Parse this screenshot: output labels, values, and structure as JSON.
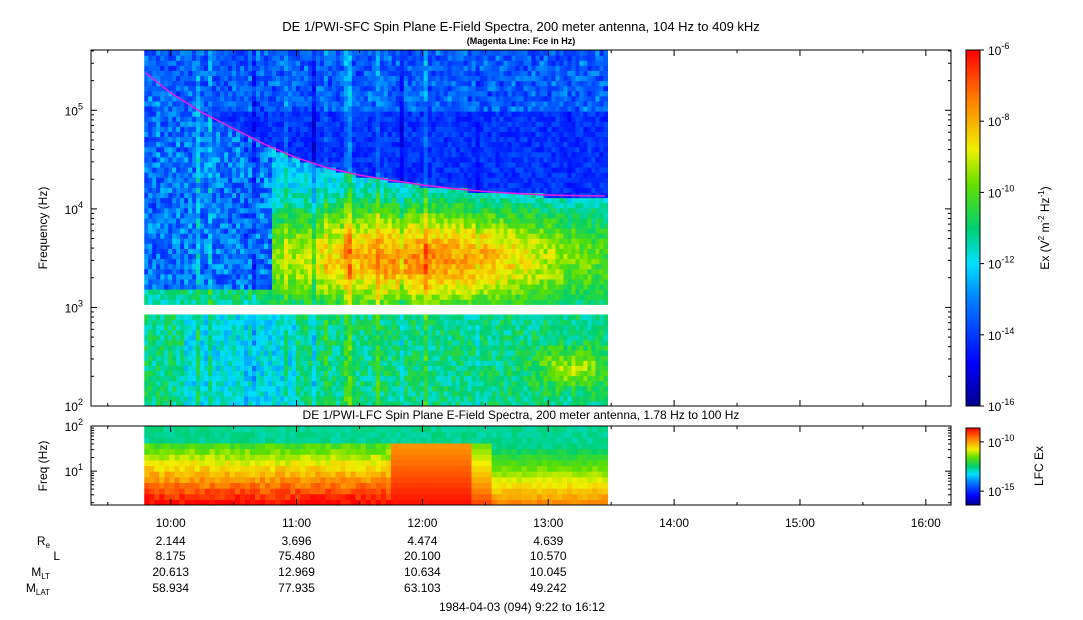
{
  "chart_data": [
    {
      "type": "heatmap",
      "title": "DE 1/PWI-SFC  Spin Plane E-Field Spectra, 200 meter antenna, 104 Hz to 409 kHz",
      "subtitle": "(Magenta Line: Fce in Hz)",
      "ylabel": "Frequency (Hz)",
      "yscale": "log",
      "ylim": [
        100,
        409000
      ],
      "yticks": [
        {
          "value": 100,
          "base": "10",
          "exp": "2"
        },
        {
          "value": 1000,
          "base": "10",
          "exp": "3"
        },
        {
          "value": 10000,
          "base": "10",
          "exp": "4"
        },
        {
          "value": 100000,
          "base": "10",
          "exp": "5"
        }
      ],
      "xlim_hours": [
        9.367,
        16.2
      ],
      "data_end_hours": 13.47,
      "data_start_hours": 9.79,
      "gap_band_hz": [
        860,
        1060
      ],
      "colorbar": {
        "scale": "log",
        "range": [
          1e-16,
          1e-06
        ],
        "label_main": "Ex (V",
        "label_sup1": "2",
        "label_mid": " m",
        "label_sup2": "-2",
        "label_mid2": " Hz",
        "label_sup3": "-1",
        "label_end": ")",
        "ticks": [
          {
            "value": 1e-06,
            "base": "10",
            "exp": "-6"
          },
          {
            "value": 1e-08,
            "base": "10",
            "exp": "-8"
          },
          {
            "value": 1e-10,
            "base": "10",
            "exp": "-10"
          },
          {
            "value": 1e-12,
            "base": "10",
            "exp": "-12"
          },
          {
            "value": 1e-14,
            "base": "10",
            "exp": "-14"
          },
          {
            "value": 1e-16,
            "base": "10",
            "exp": "-16"
          }
        ]
      },
      "fce_line": {
        "color": "#e020e0",
        "points": [
          [
            9.8,
            240000
          ],
          [
            10.0,
            150000
          ],
          [
            10.25,
            95000
          ],
          [
            10.5,
            65000
          ],
          [
            10.75,
            45000
          ],
          [
            11.0,
            33000
          ],
          [
            11.25,
            26000
          ],
          [
            11.5,
            22000
          ],
          [
            11.75,
            19500
          ],
          [
            12.0,
            17500
          ],
          [
            12.25,
            16000
          ],
          [
            12.5,
            15000
          ],
          [
            12.75,
            14300
          ],
          [
            13.0,
            13800
          ],
          [
            13.25,
            13600
          ],
          [
            13.45,
            13500
          ]
        ]
      }
    },
    {
      "type": "heatmap",
      "title": "DE 1/PWI-LFC  Spin Plane E-Field Spectra, 200 meter antenna, 1.78 Hz to 100 Hz",
      "ylabel": "Freq (Hz)",
      "yscale": "log",
      "ylim": [
        1.78,
        100
      ],
      "yticks": [
        {
          "value": 10,
          "base": "10",
          "exp": "1"
        },
        {
          "value": 100,
          "base": "10",
          "exp": "2"
        }
      ],
      "colorbar": {
        "label": "LFC Ex",
        "ticks": [
          {
            "pos": 0.82,
            "base": "10",
            "exp": "-10"
          },
          {
            "pos": 0.18,
            "base": "10",
            "exp": "-15"
          }
        ]
      }
    }
  ],
  "xaxis": {
    "ticks": [
      {
        "hour": 10,
        "label": "10:00"
      },
      {
        "hour": 11,
        "label": "11:00"
      },
      {
        "hour": 12,
        "label": "12:00"
      },
      {
        "hour": 13,
        "label": "13:00"
      },
      {
        "hour": 14,
        "label": "14:00"
      },
      {
        "hour": 15,
        "label": "15:00"
      },
      {
        "hour": 16,
        "label": "16:00"
      }
    ],
    "footer": "1984-04-03 (094) 9:22 to 16:12"
  },
  "ephemeris": [
    {
      "label": "R",
      "sub": "e",
      "values": [
        "2.144",
        "3.696",
        "4.474",
        "4.639"
      ]
    },
    {
      "label": "L",
      "sub": "",
      "values": [
        "8.175",
        "75.480",
        "20.100",
        "10.570"
      ]
    },
    {
      "label": "M",
      "sub": "LT",
      "values": [
        "20.613",
        "12.969",
        "10.634",
        "10.045"
      ]
    },
    {
      "label": "M",
      "sub": "LAT",
      "values": [
        "58.934",
        "77.935",
        "63.103",
        "49.242"
      ]
    }
  ]
}
